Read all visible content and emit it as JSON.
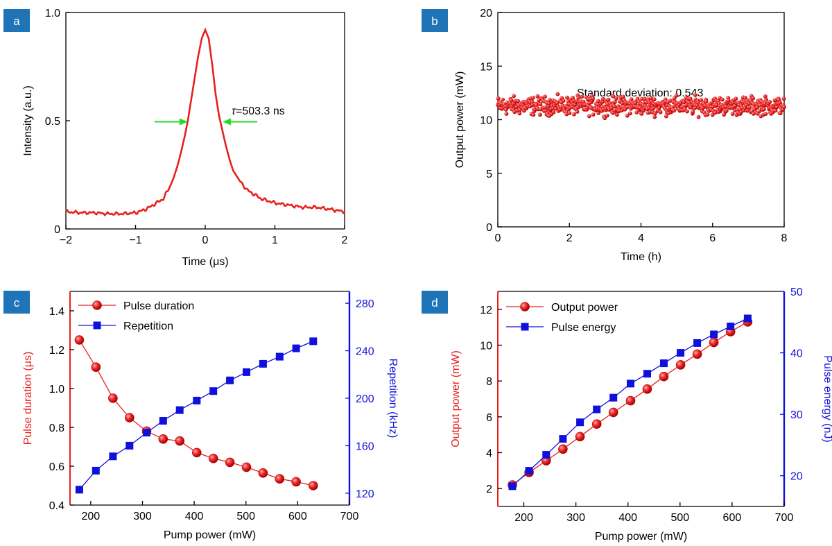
{
  "colors": {
    "red": "#e8201e",
    "blue": "#1010dd",
    "green": "#22dd22",
    "badge": "#1f73b7",
    "black": "#000000"
  },
  "chart_data": [
    {
      "id": "a",
      "type": "line",
      "badge": "a",
      "xlabel": "Time (μs)",
      "ylabel": "Intensity (a.u.)",
      "xlim": [
        -2,
        2
      ],
      "ylim": [
        0,
        1.0
      ],
      "xticks": [
        -2,
        -1,
        0,
        1,
        2
      ],
      "xtick_labels": [
        "−2",
        "−1",
        "0",
        "1",
        "2"
      ],
      "yticks": [
        0,
        0.5,
        1.0
      ],
      "ytick_labels": [
        "0",
        "0.5",
        "1.0"
      ],
      "annotation": "=503.3 ns",
      "annotation_symbol": "τ",
      "fwhm_markers": {
        "left_x": -0.25,
        "right_x": 0.25,
        "y": 0.495
      },
      "series": [
        {
          "color": "red",
          "x": [
            -2.0,
            -1.8,
            -1.6,
            -1.4,
            -1.2,
            -1.0,
            -0.9,
            -0.8,
            -0.7,
            -0.6,
            -0.55,
            -0.5,
            -0.45,
            -0.4,
            -0.35,
            -0.3,
            -0.25,
            -0.2,
            -0.15,
            -0.1,
            -0.05,
            0.0,
            0.05,
            0.1,
            0.15,
            0.2,
            0.25,
            0.3,
            0.35,
            0.4,
            0.5,
            0.6,
            0.7,
            0.8,
            0.9,
            1.0,
            1.2,
            1.4,
            1.6,
            1.8,
            2.0
          ],
          "y": [
            0.08,
            0.075,
            0.075,
            0.07,
            0.07,
            0.075,
            0.085,
            0.1,
            0.12,
            0.14,
            0.17,
            0.2,
            0.24,
            0.29,
            0.35,
            0.42,
            0.5,
            0.6,
            0.7,
            0.8,
            0.88,
            0.92,
            0.88,
            0.76,
            0.62,
            0.52,
            0.45,
            0.38,
            0.32,
            0.27,
            0.22,
            0.18,
            0.16,
            0.14,
            0.13,
            0.12,
            0.11,
            0.1,
            0.1,
            0.09,
            0.08
          ]
        }
      ]
    },
    {
      "id": "b",
      "type": "scatter",
      "badge": "b",
      "xlabel": "Time (h)",
      "ylabel": "Output power (mW)",
      "xlim": [
        0,
        8
      ],
      "ylim": [
        0,
        20
      ],
      "xticks": [
        0,
        2,
        4,
        6,
        8
      ],
      "yticks": [
        0,
        5,
        10,
        15,
        20
      ],
      "annotation": "Standard deviation: 0.543",
      "series": [
        {
          "color": "red",
          "n_points": 700,
          "mean": 11.3,
          "spread": 0.543,
          "min": 9.6,
          "max": 13.0
        }
      ]
    },
    {
      "id": "c",
      "type": "line",
      "badge": "c",
      "xlabel": "Pump power (mW)",
      "ylabel": "Pulse duration (μs)",
      "y2label": "Repetition (kHz)",
      "xlim": [
        160,
        700
      ],
      "ylim": [
        0.4,
        1.5
      ],
      "y2lim": [
        110,
        290
      ],
      "xticks": [
        200,
        300,
        400,
        500,
        600,
        700
      ],
      "yticks": [
        0.4,
        0.6,
        0.8,
        1.0,
        1.2,
        1.4
      ],
      "ytick_labels": [
        "0.4",
        "0.6",
        "0.8",
        "1.0",
        "1.2",
        "1.4"
      ],
      "y2ticks": [
        120,
        160,
        200,
        240,
        280
      ],
      "legend": "top-left",
      "x": [
        178,
        210,
        243,
        275,
        308,
        340,
        372,
        405,
        437,
        469,
        501,
        533,
        565,
        597,
        630
      ],
      "series": [
        {
          "name": "Pulse duration",
          "axis": "left",
          "color": "red",
          "marker": "sphere",
          "values": [
            1.25,
            1.11,
            0.95,
            0.85,
            0.78,
            0.74,
            0.73,
            0.67,
            0.64,
            0.62,
            0.595,
            0.565,
            0.535,
            0.52,
            0.5
          ]
        },
        {
          "name": "Repetition",
          "axis": "right",
          "color": "blue",
          "marker": "square",
          "values": [
            123,
            139,
            151,
            160,
            171,
            181,
            190,
            198,
            206,
            215,
            222,
            229,
            235,
            242,
            248
          ]
        }
      ]
    },
    {
      "id": "d",
      "type": "line",
      "badge": "d",
      "xlabel": "Pump power (mW)",
      "ylabel": "Output power (mW)",
      "y2label": "Pulse energy (nJ)",
      "xlim": [
        150,
        700
      ],
      "ylim": [
        1,
        13
      ],
      "y2lim": [
        15,
        50
      ],
      "xticks": [
        200,
        300,
        400,
        500,
        600,
        700
      ],
      "yticks": [
        2,
        4,
        6,
        8,
        10,
        12
      ],
      "y2ticks": [
        20,
        30,
        40,
        50
      ],
      "legend": "top-left",
      "x": [
        178,
        210,
        243,
        275,
        308,
        340,
        372,
        405,
        437,
        469,
        501,
        533,
        565,
        597,
        630
      ],
      "series": [
        {
          "name": "Output power",
          "axis": "left",
          "color": "red",
          "marker": "sphere",
          "values": [
            2.2,
            2.9,
            3.55,
            4.2,
            4.9,
            5.6,
            6.25,
            6.9,
            7.55,
            8.25,
            8.9,
            9.5,
            10.15,
            10.75,
            11.3
          ]
        },
        {
          "name": "Pulse energy",
          "axis": "right",
          "color": "blue",
          "marker": "square",
          "values": [
            18.3,
            20.8,
            23.4,
            26.0,
            28.7,
            30.8,
            32.7,
            35.0,
            36.6,
            38.3,
            40.0,
            41.6,
            43.0,
            44.3,
            45.6
          ]
        }
      ]
    }
  ]
}
